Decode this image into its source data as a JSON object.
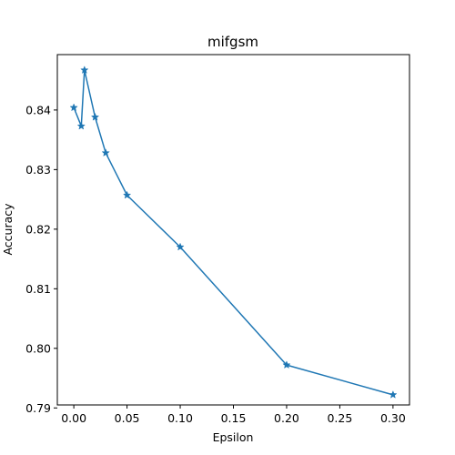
{
  "chart_data": {
    "type": "line",
    "title": "mifgsm",
    "xlabel": "Epsilon",
    "ylabel": "Accuracy",
    "xlim": [
      -0.0155,
      0.3155
    ],
    "ylim": [
      0.7905,
      0.8493
    ],
    "xticks": [
      0.0,
      0.05,
      0.1,
      0.15,
      0.2,
      0.25,
      0.3
    ],
    "xtick_labels": [
      "0.00",
      "0.05",
      "0.10",
      "0.15",
      "0.20",
      "0.25",
      "0.30"
    ],
    "yticks": [
      0.79,
      0.8,
      0.81,
      0.82,
      0.83,
      0.84
    ],
    "ytick_labels": [
      "0.79",
      "0.80",
      "0.81",
      "0.82",
      "0.83",
      "0.84"
    ],
    "grid": false,
    "marker": "star",
    "color": "#1f77b4",
    "series": [
      {
        "x": [
          0.0,
          0.007,
          0.01,
          0.02,
          0.03,
          0.05,
          0.1,
          0.2,
          0.3
        ],
        "y": [
          0.8404,
          0.8373,
          0.8467,
          0.8388,
          0.8328,
          0.8257,
          0.817,
          0.7972,
          0.7922
        ]
      }
    ]
  }
}
